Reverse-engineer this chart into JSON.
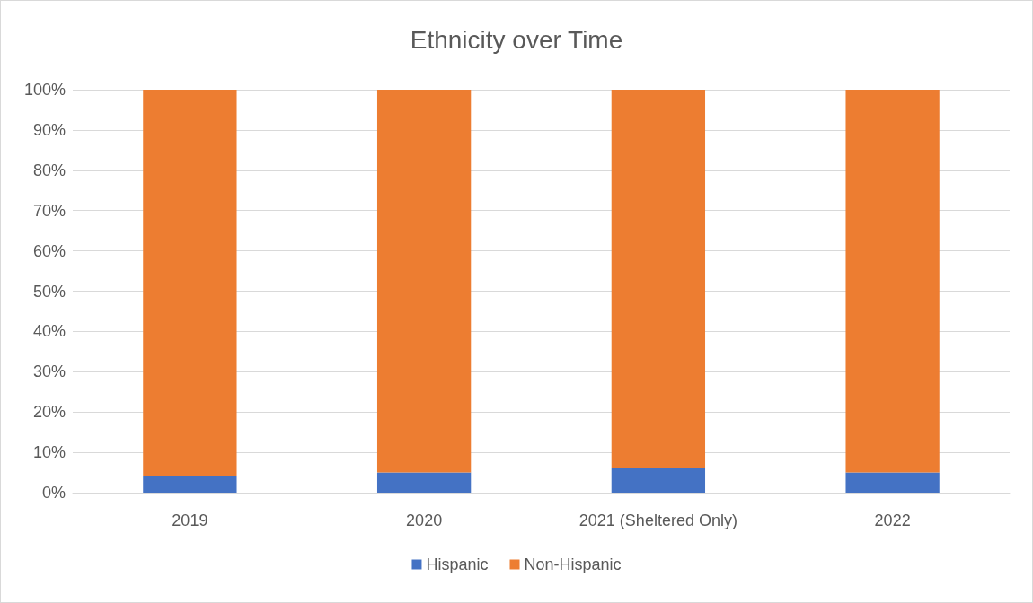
{
  "chart_data": {
    "type": "bar",
    "title": "Ethnicity over Time",
    "categories": [
      "2019",
      "2020",
      "2021 (Sheltered Only)",
      "2022"
    ],
    "stacked": true,
    "series": [
      {
        "name": "Hispanic",
        "color": "#4472c4",
        "values": [
          4,
          5,
          6,
          5
        ]
      },
      {
        "name": "Non-Hispanic",
        "color": "#ed7d31",
        "values": [
          96,
          95,
          94,
          95
        ]
      }
    ],
    "ylim": [
      0,
      100
    ],
    "yticks": [
      {
        "value": 0,
        "label": "0%"
      },
      {
        "value": 10,
        "label": "10%"
      },
      {
        "value": 20,
        "label": "20%"
      },
      {
        "value": 30,
        "label": "30%"
      },
      {
        "value": 40,
        "label": "40%"
      },
      {
        "value": 50,
        "label": "50%"
      },
      {
        "value": 60,
        "label": "60%"
      },
      {
        "value": 70,
        "label": "70%"
      },
      {
        "value": 80,
        "label": "80%"
      },
      {
        "value": 90,
        "label": "90%"
      },
      {
        "value": 100,
        "label": "100%"
      }
    ],
    "grid": true,
    "legend": "bottom"
  }
}
